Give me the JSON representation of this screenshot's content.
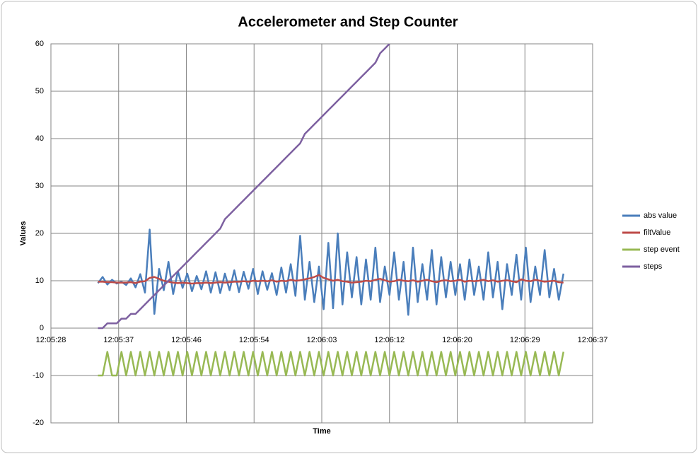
{
  "chart_data": {
    "type": "line",
    "title": "Accelerometer and Step Counter",
    "xlabel": "Time",
    "ylabel": "Values",
    "xlim": [
      43528,
      43597.12
    ],
    "xticks": [
      {
        "value": 43528,
        "label": "12:05:28"
      },
      {
        "value": 43536.64,
        "label": "12:05:37"
      },
      {
        "value": 43545.28,
        "label": "12:05:46"
      },
      {
        "value": 43553.92,
        "label": "12:05:54"
      },
      {
        "value": 43562.56,
        "label": "12:06:03"
      },
      {
        "value": 43571.2,
        "label": "12:06:12"
      },
      {
        "value": 43579.84,
        "label": "12:06:20"
      },
      {
        "value": 43588.48,
        "label": "12:06:29"
      },
      {
        "value": 43597.12,
        "label": "12:06:37"
      }
    ],
    "ylim": [
      -20,
      60
    ],
    "yticks": [
      -20,
      -10,
      0,
      10,
      20,
      30,
      40,
      50,
      60
    ],
    "grid": true,
    "legend": "right",
    "x": [
      43534,
      43534.6,
      43535.2,
      43535.8,
      43536.4,
      43537,
      43537.6,
      43538.2,
      43538.8,
      43539.4,
      43540,
      43540.6,
      43541.2,
      43541.8,
      43542.4,
      43543,
      43543.6,
      43544.2,
      43544.8,
      43545.4,
      43546,
      43546.6,
      43547.2,
      43547.8,
      43548.4,
      43549,
      43549.6,
      43550.2,
      43550.8,
      43551.4,
      43552,
      43552.6,
      43553.2,
      43553.8,
      43554.4,
      43555,
      43555.6,
      43556.2,
      43556.8,
      43557.4,
      43558,
      43558.6,
      43559.2,
      43559.8,
      43560.4,
      43561,
      43561.6,
      43562.2,
      43562.8,
      43563.4,
      43564,
      43564.6,
      43565.2,
      43565.8,
      43566.4,
      43567,
      43567.6,
      43568.2,
      43568.8,
      43569.4,
      43570,
      43570.6,
      43571.2,
      43571.8,
      43572.4,
      43573,
      43573.6,
      43574.2,
      43574.8,
      43575.4,
      43576,
      43576.6,
      43577.2,
      43577.8,
      43578.4,
      43579,
      43579.6,
      43580.2,
      43580.8,
      43581.4,
      43582,
      43582.6,
      43583.2,
      43583.8,
      43584.4,
      43585,
      43585.6,
      43586.2,
      43586.8,
      43587.4,
      43588,
      43588.6,
      43589.2,
      43589.8,
      43590.4,
      43591,
      43591.6,
      43592.2,
      43592.8,
      43593.4
    ],
    "series": [
      {
        "name": "abs value",
        "color": "#4a7ebb",
        "values": [
          9.5,
          10.8,
          9.2,
          10.2,
          9.4,
          9.8,
          9.1,
          10.5,
          8.6,
          11.4,
          7.5,
          20.8,
          3.0,
          12.5,
          8.0,
          14.0,
          7.2,
          12.0,
          8.5,
          11.5,
          7.8,
          11.0,
          8.2,
          12.0,
          7.5,
          11.8,
          7.4,
          11.5,
          8.0,
          12.2,
          7.6,
          11.9,
          8.3,
          12.5,
          7.2,
          12.0,
          8.1,
          11.6,
          7.0,
          12.8,
          7.5,
          13.5,
          6.8,
          19.5,
          6.0,
          14.0,
          5.5,
          13.0,
          4.0,
          18.0,
          4.2,
          20.0,
          5.0,
          16.0,
          6.5,
          15.0,
          5.0,
          14.5,
          6.0,
          17.0,
          5.5,
          13.0,
          7.0,
          16.0,
          6.0,
          14.0,
          2.8,
          17.0,
          5.5,
          13.5,
          6.0,
          16.5,
          5.0,
          15.0,
          6.5,
          14.0,
          7.0,
          13.5,
          6.0,
          14.5,
          7.0,
          13.0,
          6.0,
          16.0,
          6.5,
          14.0,
          4.0,
          13.5,
          7.0,
          15.5,
          6.0,
          17.0,
          5.5,
          13.0,
          7.0,
          16.5,
          6.5,
          12.5,
          6.0,
          11.5
        ]
      },
      {
        "name": "filtValue",
        "color": "#be4b48",
        "values": [
          9.8,
          9.8,
          9.7,
          9.7,
          9.6,
          9.6,
          9.6,
          9.7,
          9.5,
          9.8,
          9.9,
          10.6,
          10.8,
          10.4,
          10.0,
          9.8,
          9.6,
          9.5,
          9.6,
          9.5,
          9.4,
          9.5,
          9.5,
          9.6,
          9.5,
          9.6,
          9.7,
          9.6,
          9.7,
          9.8,
          9.8,
          9.9,
          9.8,
          10.0,
          9.9,
          10.0,
          9.9,
          10.1,
          9.8,
          10.0,
          9.9,
          10.2,
          10.0,
          10.1,
          10.3,
          10.5,
          10.8,
          11.2,
          10.6,
          10.3,
          10.0,
          10.2,
          9.9,
          9.8,
          9.6,
          9.7,
          9.8,
          10.0,
          9.9,
          10.2,
          10.4,
          10.1,
          9.8,
          9.9,
          10.2,
          10.0,
          9.9,
          10.1,
          9.8,
          10.0,
          10.2,
          9.9,
          9.7,
          10.0,
          10.1,
          9.9,
          10.0,
          10.2,
          9.8,
          10.0,
          9.9,
          10.0,
          10.2,
          9.9,
          10.1,
          9.8,
          10.0,
          10.1,
          9.9,
          9.7,
          10.3,
          10.0,
          9.9,
          10.2,
          10.0,
          9.8,
          9.9,
          10.0,
          9.7,
          9.6
        ]
      },
      {
        "name": "step event",
        "color": "#98b954",
        "values": [
          -10,
          -10,
          -5,
          -10,
          -10,
          -5,
          -10,
          -5,
          -10,
          -5,
          -10,
          -5,
          -10,
          -5,
          -10,
          -5,
          -10,
          -5,
          -10,
          -5,
          -10,
          -5,
          -10,
          -5,
          -10,
          -5,
          -10,
          -5,
          -10,
          -5,
          -10,
          -5,
          -10,
          -5,
          -10,
          -5,
          -10,
          -5,
          -10,
          -5,
          -10,
          -5,
          -10,
          -5,
          -10,
          -5,
          -10,
          -5,
          -10,
          -5,
          -10,
          -5,
          -10,
          -5,
          -10,
          -5,
          -10,
          -5,
          -10,
          -5,
          -10,
          -5,
          -10,
          -5,
          -10,
          -5,
          -10,
          -5,
          -10,
          -5,
          -10,
          -5,
          -10,
          -5,
          -10,
          -5,
          -10,
          -5,
          -10,
          -5,
          -10,
          -5,
          -10,
          -5,
          -10,
          -5,
          -10,
          -5,
          -10,
          -5,
          -10,
          -5,
          -10,
          -5,
          -10,
          -5,
          -10,
          -5,
          -10,
          -5
        ]
      },
      {
        "name": "steps",
        "color": "#7d60a0",
        "values": [
          0,
          0,
          1,
          1,
          1,
          2,
          2,
          3,
          3,
          4,
          5,
          6,
          7,
          8,
          9,
          10,
          11,
          12,
          13,
          14,
          15,
          16,
          17,
          18,
          19,
          20,
          21,
          23,
          24,
          25,
          26,
          27,
          28,
          29,
          30,
          31,
          32,
          33,
          34,
          35,
          36,
          37,
          38,
          39,
          41,
          42,
          43,
          44,
          45,
          46,
          47,
          48,
          49,
          50,
          51,
          52,
          53,
          54,
          55,
          56,
          58,
          59,
          60,
          null,
          null,
          null,
          null,
          null,
          null,
          null,
          null,
          null,
          null,
          null,
          null,
          null,
          null,
          null,
          null,
          null,
          null,
          null,
          null,
          null,
          null,
          null,
          null,
          null,
          null,
          null,
          null,
          null,
          null,
          null,
          null,
          null,
          null,
          null,
          null,
          null
        ]
      }
    ]
  }
}
